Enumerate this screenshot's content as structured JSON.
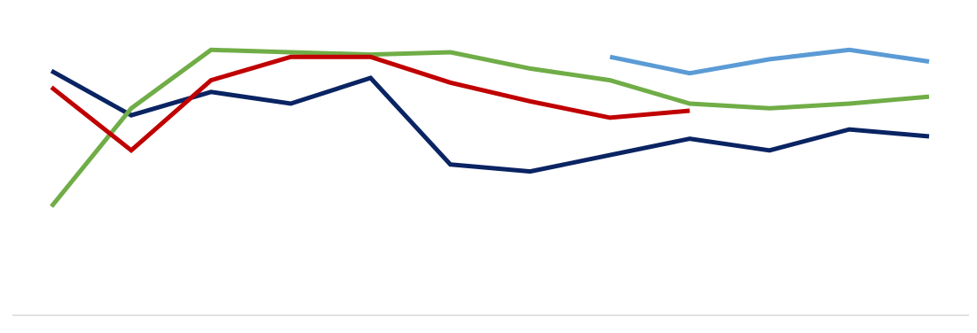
{
  "chart_data": {
    "type": "line",
    "title": "",
    "xlabel": "",
    "ylabel": "",
    "grid": false,
    "legend": "none",
    "x": [
      1,
      2,
      3,
      4,
      5,
      6,
      7,
      8,
      9,
      10,
      11,
      12
    ],
    "ylim": [
      0,
      100
    ],
    "series": [
      {
        "color": "#0a2463",
        "values": [
          78,
          59,
          69,
          64,
          75,
          38,
          35,
          42,
          49,
          44,
          53,
          50
        ]
      },
      {
        "color": "#70ad47",
        "values": [
          20,
          62,
          87,
          86,
          85,
          86,
          79,
          74,
          64,
          62,
          64,
          67
        ]
      },
      {
        "color": "#c00000",
        "values": [
          71,
          44,
          74,
          84,
          84,
          73,
          65,
          58,
          61,
          null,
          null,
          null
        ]
      },
      {
        "color": "#5b9bd5",
        "values": [
          null,
          null,
          null,
          null,
          null,
          null,
          null,
          84,
          77,
          83,
          87,
          82
        ]
      }
    ]
  }
}
